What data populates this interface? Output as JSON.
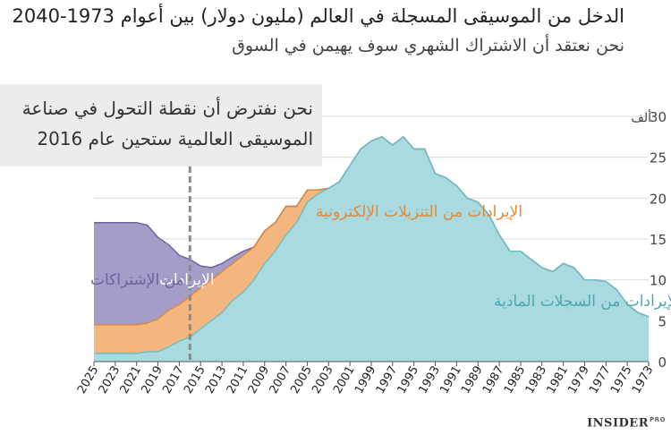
{
  "header": {
    "title": "الدخل من الموسيقى المسجلة في العالم (مليون دولار) بين أعوام 1973-2040",
    "subtitle": "نحن نعتقد أن الاشتراك الشهري سوف يهيمن في السوق"
  },
  "annotation": {
    "line1": "نحن نفترض أن نقطة التحول في صناعة",
    "line2": "الموسيقى العالمية ستحين عام 2016"
  },
  "brand": {
    "name": "INSIDER",
    "tag": "PRO"
  },
  "colors": {
    "physical": "#a9dadf",
    "physical_line": "#6cc0c9",
    "digital": "#f2b67e",
    "digital_line": "#d98a3f",
    "subscription": "#a59cc8",
    "subscription_line": "#6e64a3",
    "divider": "#8a8a8a"
  },
  "chart_data": {
    "type": "area",
    "stacked": true,
    "x_reversed": true,
    "x": [
      1973,
      1974,
      1975,
      1976,
      1977,
      1978,
      1979,
      1980,
      1981,
      1982,
      1983,
      1984,
      1985,
      1986,
      1987,
      1988,
      1989,
      1990,
      1991,
      1992,
      1993,
      1994,
      1995,
      1996,
      1997,
      1998,
      1999,
      2000,
      2001,
      2002,
      2003,
      2004,
      2005,
      2006,
      2007,
      2008,
      2009,
      2010,
      2011,
      2012,
      2013,
      2014,
      2015,
      2016,
      2017,
      2018,
      2019,
      2020,
      2021,
      2022,
      2023,
      2024,
      2025
    ],
    "x_ticks": [
      2025,
      2023,
      2021,
      2019,
      2017,
      2015,
      2013,
      2011,
      2009,
      2007,
      2005,
      2003,
      2001,
      1999,
      1997,
      1995,
      1993,
      1991,
      1989,
      1987,
      1985,
      1983,
      1981,
      1979,
      1977,
      1975,
      1973
    ],
    "series": [
      {
        "name": "الإيرادات من السجلات المادية",
        "key": "physical",
        "values": [
          5.5,
          6,
          7,
          8.8,
          9.8,
          10,
          10,
          11.5,
          12,
          11,
          11.5,
          12.5,
          13.5,
          13.5,
          15.5,
          18,
          19.5,
          20,
          21.5,
          22.5,
          23,
          26,
          26,
          27.5,
          26.5,
          27.5,
          27,
          26,
          24,
          22,
          21.2,
          20.5,
          19.5,
          17,
          15.5,
          13.5,
          12,
          10,
          8.5,
          7.5,
          6,
          5,
          4,
          3,
          2.5,
          1.8,
          1.2,
          1.2,
          1,
          1,
          1,
          1,
          1
        ]
      },
      {
        "name": "الإيرادات من التنزيلات الإلكترونية",
        "key": "digital",
        "values": [
          0,
          0,
          0,
          0,
          0,
          0,
          0,
          0,
          0,
          0,
          0,
          0,
          0,
          0,
          0,
          0,
          0,
          0,
          0,
          0,
          0,
          0,
          0,
          0,
          0,
          0,
          0,
          0,
          0,
          0,
          0,
          0.5,
          1.5,
          2,
          3.5,
          3.5,
          4,
          4,
          4.5,
          4.5,
          5,
          5,
          5,
          5,
          4.5,
          4.5,
          4,
          3.5,
          3.5,
          3.5,
          3.5,
          3.5,
          3.5
        ]
      },
      {
        "name": "الإيرادات من الإشتراكات",
        "key": "subscription",
        "values": [
          0,
          0,
          0,
          0,
          0,
          0,
          0,
          0,
          0,
          0,
          0,
          0,
          0,
          0,
          0,
          0,
          0,
          0,
          0,
          0,
          0,
          0,
          0,
          0,
          0,
          0,
          0,
          0,
          0,
          0,
          0,
          0,
          0,
          0,
          0,
          0,
          0,
          0,
          0.5,
          0.8,
          1,
          1.5,
          2.7,
          4.5,
          6,
          8,
          10,
          12,
          12.5,
          12.5,
          12.5,
          12.5,
          12.5
        ]
      }
    ],
    "ylim": [
      0,
      30
    ],
    "yticks": [
      0,
      5,
      10,
      15,
      20,
      25,
      30
    ],
    "ytick_unit": "ألف",
    "annotation_year": 2016,
    "grid": true,
    "series_labels": {
      "physical": "الإيرادات من السجلات المادية",
      "digital": "الإيرادات من التنزيلات الإلكترونية",
      "subscription_a": "الإيرادات",
      "subscription_b": "من الإشتراكات"
    }
  }
}
